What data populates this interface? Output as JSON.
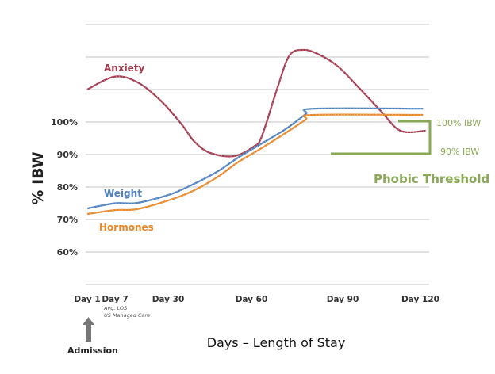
{
  "chart_data": {
    "type": "line",
    "title": "",
    "xlabel": "Days – Length of Stay",
    "ylabel": "% IBW",
    "xlim": [
      1,
      122
    ],
    "ylim": [
      50,
      130
    ],
    "grid": true,
    "y_ticks": [
      {
        "value": 60,
        "label": "60%"
      },
      {
        "value": 70,
        "label": "70%"
      },
      {
        "value": 80,
        "label": "80%"
      },
      {
        "value": 90,
        "label": "90%"
      },
      {
        "value": 100,
        "label": "100%"
      }
    ],
    "y_gridlines": [
      50,
      60,
      70,
      80,
      90,
      100,
      110,
      120,
      130
    ],
    "x_ticks": [
      {
        "value": 1,
        "label": "Day 1"
      },
      {
        "value": 7,
        "label": "Day 7"
      },
      {
        "value": 30,
        "label": "Day 30"
      },
      {
        "value": 60,
        "label": "Day 60"
      },
      {
        "value": 90,
        "label": "Day 90"
      },
      {
        "value": 120,
        "label": "Day 120"
      }
    ],
    "series": [
      {
        "name": "Anxiety",
        "color": "#a23b4e",
        "x": [
          1,
          7,
          17.3,
          27.6,
          35.1,
          39.4,
          45.1,
          53.7,
          60.8,
          63.4,
          68.6,
          72.5,
          77,
          81.7,
          88.2,
          95.5,
          104.7,
          112.3,
          122
        ],
        "y": [
          110,
          114,
          112,
          106,
          99,
          94,
          90.5,
          89.5,
          92.5,
          95.6,
          110.7,
          120.5,
          122.2,
          121,
          117.3,
          111.2,
          103.4,
          97.3,
          97.3
        ]
      },
      {
        "name": "Weight",
        "color": "#4f81bd",
        "x": [
          1,
          7,
          16.6,
          30.9,
          39.4,
          48,
          55.1,
          63.4,
          71.2,
          77.8,
          80.4,
          121
        ],
        "y": [
          73.4,
          75,
          75.1,
          77.8,
          81,
          84.9,
          89,
          93.4,
          97.8,
          102.4,
          104.1,
          104.1
        ]
      },
      {
        "name": "Hormones",
        "color": "#e8882a",
        "x": [
          1,
          7,
          16.6,
          30.9,
          39.4,
          48,
          55.1,
          63.4,
          71.2,
          77.8,
          80.4,
          121
        ],
        "y": [
          71.7,
          72.9,
          73.2,
          76.1,
          79,
          83.2,
          87.6,
          92,
          96.6,
          100.7,
          102.2,
          102.2
        ]
      }
    ],
    "annotations": {
      "phobic_threshold": {
        "label": "Phobic Threshold",
        "upper_label": "100% IBW",
        "upper_value": 100,
        "lower_label": "90% IBW",
        "lower_value": 90,
        "color": "#8aa856"
      },
      "day7_note": [
        "Avg. LOS",
        "US Managed Care"
      ],
      "admission": "Admission"
    }
  }
}
